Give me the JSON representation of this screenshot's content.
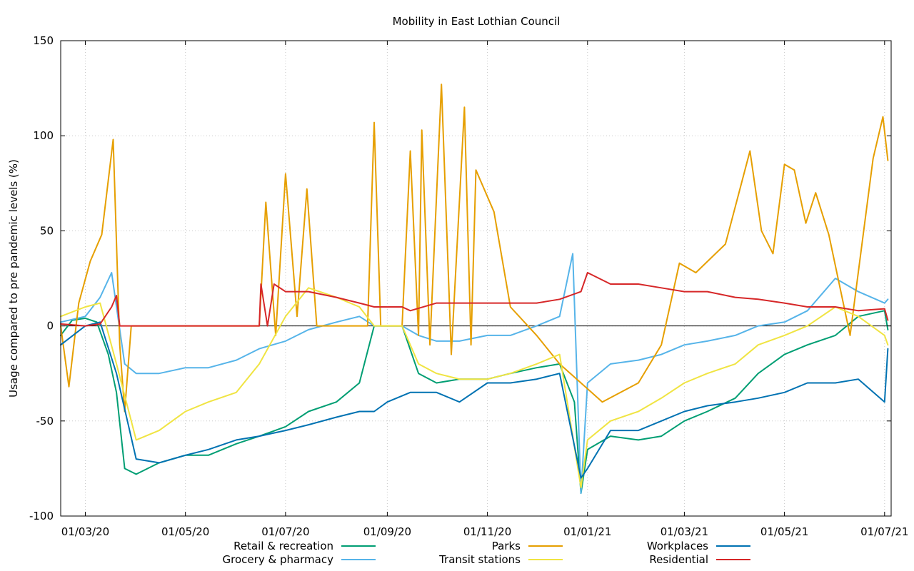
{
  "chart_data": {
    "type": "line",
    "title": "Mobility in East Lothian Council",
    "xlabel": "",
    "ylabel": "Usage compared to pre pandemic levels (%)",
    "ylim": [
      -100,
      150
    ],
    "xlim": [
      "2020-02-15",
      "2021-07-05"
    ],
    "yticks": [
      "150",
      "100",
      "50",
      "0",
      "-50",
      "-100"
    ],
    "xticks": [
      {
        "date": "2020-03-01",
        "label": "01/03/20"
      },
      {
        "date": "2020-05-01",
        "label": "01/05/20"
      },
      {
        "date": "2020-07-01",
        "label": "01/07/20"
      },
      {
        "date": "2020-09-01",
        "label": "01/09/20"
      },
      {
        "date": "2020-11-01",
        "label": "01/11/20"
      },
      {
        "date": "2021-01-01",
        "label": "01/01/21"
      },
      {
        "date": "2021-03-01",
        "label": "01/03/21"
      },
      {
        "date": "2021-05-01",
        "label": "01/05/21"
      },
      {
        "date": "2021-07-01",
        "label": "01/07/21"
      }
    ],
    "grid": true,
    "legend_position": "bottom",
    "series": [
      {
        "name": "Retail & recreation",
        "color": "#009e73",
        "points": [
          [
            "2020-02-15",
            -5
          ],
          [
            "2020-02-22",
            3
          ],
          [
            "2020-03-01",
            4
          ],
          [
            "2020-03-08",
            2
          ],
          [
            "2020-03-15",
            -15
          ],
          [
            "2020-03-20",
            -35
          ],
          [
            "2020-03-25",
            -75
          ],
          [
            "2020-04-01",
            -78
          ],
          [
            "2020-04-15",
            -72
          ],
          [
            "2020-05-01",
            -68
          ],
          [
            "2020-05-15",
            -68
          ],
          [
            "2020-06-01",
            -62
          ],
          [
            "2020-06-15",
            -58
          ],
          [
            "2020-07-01",
            -53
          ],
          [
            "2020-07-15",
            -45
          ],
          [
            "2020-08-01",
            -40
          ],
          [
            "2020-08-15",
            -30
          ],
          [
            "2020-08-24",
            0
          ],
          [
            "2020-09-01",
            0
          ],
          [
            "2020-09-10",
            0
          ],
          [
            "2020-09-20",
            -25
          ],
          [
            "2020-10-01",
            -30
          ],
          [
            "2020-10-15",
            -28
          ],
          [
            "2020-11-01",
            -28
          ],
          [
            "2020-11-15",
            -25
          ],
          [
            "2020-12-01",
            -22
          ],
          [
            "2020-12-15",
            -20
          ],
          [
            "2020-12-24",
            -40
          ],
          [
            "2020-12-28",
            -88
          ],
          [
            "2021-01-01",
            -65
          ],
          [
            "2021-01-15",
            -58
          ],
          [
            "2021-02-01",
            -60
          ],
          [
            "2021-02-15",
            -58
          ],
          [
            "2021-03-01",
            -50
          ],
          [
            "2021-03-15",
            -45
          ],
          [
            "2021-04-01",
            -38
          ],
          [
            "2021-04-15",
            -25
          ],
          [
            "2021-05-01",
            -15
          ],
          [
            "2021-05-15",
            -10
          ],
          [
            "2021-06-01",
            -5
          ],
          [
            "2021-06-15",
            5
          ],
          [
            "2021-07-01",
            8
          ],
          [
            "2021-07-03",
            -2
          ]
        ]
      },
      {
        "name": "Grocery & pharmacy",
        "color": "#56b4e9",
        "points": [
          [
            "2020-02-15",
            2
          ],
          [
            "2020-03-01",
            5
          ],
          [
            "2020-03-10",
            15
          ],
          [
            "2020-03-17",
            28
          ],
          [
            "2020-03-25",
            -20
          ],
          [
            "2020-04-01",
            -25
          ],
          [
            "2020-04-15",
            -25
          ],
          [
            "2020-05-01",
            -22
          ],
          [
            "2020-05-15",
            -22
          ],
          [
            "2020-06-01",
            -18
          ],
          [
            "2020-06-15",
            -12
          ],
          [
            "2020-07-01",
            -8
          ],
          [
            "2020-07-15",
            -2
          ],
          [
            "2020-08-01",
            2
          ],
          [
            "2020-08-15",
            5
          ],
          [
            "2020-08-24",
            0
          ],
          [
            "2020-09-10",
            0
          ],
          [
            "2020-09-20",
            -5
          ],
          [
            "2020-10-01",
            -8
          ],
          [
            "2020-10-15",
            -8
          ],
          [
            "2020-11-01",
            -5
          ],
          [
            "2020-11-15",
            -5
          ],
          [
            "2020-12-01",
            0
          ],
          [
            "2020-12-15",
            5
          ],
          [
            "2020-12-23",
            38
          ],
          [
            "2020-12-28",
            -88
          ],
          [
            "2021-01-01",
            -30
          ],
          [
            "2021-01-15",
            -20
          ],
          [
            "2021-02-01",
            -18
          ],
          [
            "2021-02-15",
            -15
          ],
          [
            "2021-03-01",
            -10
          ],
          [
            "2021-03-15",
            -8
          ],
          [
            "2021-04-01",
            -5
          ],
          [
            "2021-04-15",
            0
          ],
          [
            "2021-05-01",
            2
          ],
          [
            "2021-05-15",
            8
          ],
          [
            "2021-06-01",
            25
          ],
          [
            "2021-06-15",
            18
          ],
          [
            "2021-07-01",
            12
          ],
          [
            "2021-07-03",
            14
          ]
        ]
      },
      {
        "name": "Parks",
        "color": "#e69f00",
        "points": [
          [
            "2020-02-15",
            0
          ],
          [
            "2020-02-20",
            -32
          ],
          [
            "2020-02-26",
            12
          ],
          [
            "2020-03-04",
            34
          ],
          [
            "2020-03-11",
            48
          ],
          [
            "2020-03-18",
            98
          ],
          [
            "2020-03-22",
            -10
          ],
          [
            "2020-03-25",
            -45
          ],
          [
            "2020-03-29",
            0
          ],
          [
            "2020-06-15",
            0
          ],
          [
            "2020-06-19",
            65
          ],
          [
            "2020-06-25",
            -5
          ],
          [
            "2020-07-01",
            80
          ],
          [
            "2020-07-08",
            5
          ],
          [
            "2020-07-14",
            72
          ],
          [
            "2020-07-20",
            0
          ],
          [
            "2020-08-20",
            0
          ],
          [
            "2020-08-24",
            107
          ],
          [
            "2020-08-28",
            0
          ],
          [
            "2020-09-10",
            0
          ],
          [
            "2020-09-15",
            92
          ],
          [
            "2020-09-20",
            -5
          ],
          [
            "2020-09-22",
            103
          ],
          [
            "2020-09-27",
            -10
          ],
          [
            "2020-10-04",
            127
          ],
          [
            "2020-10-10",
            -15
          ],
          [
            "2020-10-18",
            115
          ],
          [
            "2020-10-22",
            -10
          ],
          [
            "2020-10-25",
            82
          ],
          [
            "2020-11-05",
            60
          ],
          [
            "2020-11-15",
            10
          ],
          [
            "2020-12-01",
            -5
          ],
          [
            "2020-12-15",
            -20
          ],
          [
            "2020-12-28",
            -30
          ],
          [
            "2021-01-10",
            -40
          ],
          [
            "2021-02-01",
            -30
          ],
          [
            "2021-02-15",
            -10
          ],
          [
            "2021-02-26",
            33
          ],
          [
            "2021-03-08",
            28
          ],
          [
            "2021-03-26",
            43
          ],
          [
            "2021-04-10",
            92
          ],
          [
            "2021-04-17",
            50
          ],
          [
            "2021-04-24",
            38
          ],
          [
            "2021-05-01",
            85
          ],
          [
            "2021-05-07",
            82
          ],
          [
            "2021-05-14",
            54
          ],
          [
            "2021-05-20",
            70
          ],
          [
            "2021-05-28",
            48
          ],
          [
            "2021-06-10",
            -5
          ],
          [
            "2021-06-24",
            88
          ],
          [
            "2021-06-30",
            110
          ],
          [
            "2021-07-03",
            87
          ]
        ]
      },
      {
        "name": "Transit stations",
        "color": "#f0e442",
        "points": [
          [
            "2020-02-15",
            5
          ],
          [
            "2020-03-01",
            10
          ],
          [
            "2020-03-10",
            12
          ],
          [
            "2020-03-20",
            -20
          ],
          [
            "2020-04-01",
            -60
          ],
          [
            "2020-04-15",
            -55
          ],
          [
            "2020-05-01",
            -45
          ],
          [
            "2020-05-15",
            -40
          ],
          [
            "2020-06-01",
            -35
          ],
          [
            "2020-06-15",
            -20
          ],
          [
            "2020-07-01",
            5
          ],
          [
            "2020-07-15",
            20
          ],
          [
            "2020-08-01",
            15
          ],
          [
            "2020-08-15",
            10
          ],
          [
            "2020-08-24",
            0
          ],
          [
            "2020-09-10",
            0
          ],
          [
            "2020-09-20",
            -20
          ],
          [
            "2020-10-01",
            -25
          ],
          [
            "2020-10-15",
            -28
          ],
          [
            "2020-11-01",
            -28
          ],
          [
            "2020-11-15",
            -25
          ],
          [
            "2020-12-01",
            -20
          ],
          [
            "2020-12-15",
            -15
          ],
          [
            "2020-12-28",
            -85
          ],
          [
            "2021-01-01",
            -60
          ],
          [
            "2021-01-15",
            -50
          ],
          [
            "2021-02-01",
            -45
          ],
          [
            "2021-02-15",
            -38
          ],
          [
            "2021-03-01",
            -30
          ],
          [
            "2021-03-15",
            -25
          ],
          [
            "2021-04-01",
            -20
          ],
          [
            "2021-04-15",
            -10
          ],
          [
            "2021-05-01",
            -5
          ],
          [
            "2021-05-15",
            0
          ],
          [
            "2021-06-01",
            10
          ],
          [
            "2021-06-15",
            5
          ],
          [
            "2021-07-01",
            -5
          ],
          [
            "2021-07-03",
            -10
          ]
        ]
      },
      {
        "name": "Workplaces",
        "color": "#0072b2",
        "points": [
          [
            "2020-02-15",
            -10
          ],
          [
            "2020-03-01",
            0
          ],
          [
            "2020-03-10",
            2
          ],
          [
            "2020-03-20",
            -25
          ],
          [
            "2020-03-28",
            -55
          ],
          [
            "2020-04-01",
            -70
          ],
          [
            "2020-04-15",
            -72
          ],
          [
            "2020-05-01",
            -68
          ],
          [
            "2020-05-15",
            -65
          ],
          [
            "2020-06-01",
            -60
          ],
          [
            "2020-06-15",
            -58
          ],
          [
            "2020-07-01",
            -55
          ],
          [
            "2020-07-15",
            -52
          ],
          [
            "2020-08-01",
            -48
          ],
          [
            "2020-08-15",
            -45
          ],
          [
            "2020-08-24",
            -45
          ],
          [
            "2020-09-01",
            -40
          ],
          [
            "2020-09-15",
            -35
          ],
          [
            "2020-10-01",
            -35
          ],
          [
            "2020-10-15",
            -40
          ],
          [
            "2020-11-01",
            -30
          ],
          [
            "2020-11-15",
            -30
          ],
          [
            "2020-12-01",
            -28
          ],
          [
            "2020-12-15",
            -25
          ],
          [
            "2020-12-28",
            -80
          ],
          [
            "2021-01-01",
            -75
          ],
          [
            "2021-01-15",
            -55
          ],
          [
            "2021-02-01",
            -55
          ],
          [
            "2021-02-15",
            -50
          ],
          [
            "2021-03-01",
            -45
          ],
          [
            "2021-03-15",
            -42
          ],
          [
            "2021-04-01",
            -40
          ],
          [
            "2021-04-15",
            -38
          ],
          [
            "2021-05-01",
            -35
          ],
          [
            "2021-05-15",
            -30
          ],
          [
            "2021-06-01",
            -30
          ],
          [
            "2021-06-15",
            -28
          ],
          [
            "2021-07-01",
            -40
          ],
          [
            "2021-07-03",
            -12
          ]
        ]
      },
      {
        "name": "Residential",
        "color": "#d62728",
        "points": [
          [
            "2020-02-15",
            1
          ],
          [
            "2020-03-01",
            0
          ],
          [
            "2020-03-10",
            1
          ],
          [
            "2020-03-17",
            10
          ],
          [
            "2020-03-20",
            16
          ],
          [
            "2020-03-22",
            0
          ],
          [
            "2020-06-15",
            0
          ],
          [
            "2020-06-16",
            22
          ],
          [
            "2020-06-20",
            0
          ],
          [
            "2020-06-24",
            22
          ],
          [
            "2020-07-01",
            18
          ],
          [
            "2020-07-15",
            18
          ],
          [
            "2020-08-01",
            15
          ],
          [
            "2020-08-15",
            12
          ],
          [
            "2020-08-24",
            10
          ],
          [
            "2020-09-10",
            10
          ],
          [
            "2020-09-15",
            8
          ],
          [
            "2020-10-01",
            12
          ],
          [
            "2020-10-15",
            12
          ],
          [
            "2020-11-01",
            12
          ],
          [
            "2020-11-15",
            12
          ],
          [
            "2020-12-01",
            12
          ],
          [
            "2020-12-15",
            14
          ],
          [
            "2020-12-28",
            18
          ],
          [
            "2021-01-01",
            28
          ],
          [
            "2021-01-15",
            22
          ],
          [
            "2021-02-01",
            22
          ],
          [
            "2021-02-15",
            20
          ],
          [
            "2021-03-01",
            18
          ],
          [
            "2021-03-15",
            18
          ],
          [
            "2021-04-01",
            15
          ],
          [
            "2021-04-15",
            14
          ],
          [
            "2021-05-01",
            12
          ],
          [
            "2021-05-15",
            10
          ],
          [
            "2021-06-01",
            10
          ],
          [
            "2021-06-15",
            8
          ],
          [
            "2021-07-01",
            9
          ],
          [
            "2021-07-03",
            3
          ]
        ]
      }
    ]
  }
}
